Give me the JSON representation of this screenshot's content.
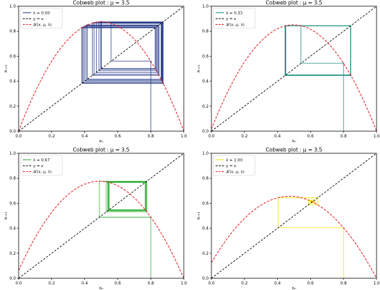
{
  "chart_data": [
    {
      "type": "line",
      "title": "Cobweb plot : μ = 3.5",
      "xlabel": "xₙ",
      "ylabel": "xₙ₊₁",
      "xlim": [
        0,
        1.0
      ],
      "ylim": [
        0,
        1.0
      ],
      "xticks": [
        "0.0",
        "0.2",
        "0.4",
        "0.6",
        "0.8",
        "1.0"
      ],
      "yticks": [
        "0.0",
        "0.2",
        "0.4",
        "0.6",
        "0.8",
        "1.0"
      ],
      "legend_position": "top-left",
      "grid": false,
      "series": [
        {
          "name": "λ = 0.00",
          "kind": "cobweb",
          "lambda": 0.0,
          "x0": 0.8,
          "iterations": 60,
          "color": "#2b3f8c"
        },
        {
          "name": "y = x",
          "kind": "identity",
          "color": "#000000"
        },
        {
          "name": "𝒦(x, μ, λ)",
          "kind": "map",
          "lambda": 0.0,
          "mu": 3.5,
          "color": "#e8242b"
        }
      ]
    },
    {
      "type": "line",
      "title": "Cobweb plot : μ = 3.5",
      "xlabel": "xₙ",
      "ylabel": "xₙ₊₁",
      "xlim": [
        0,
        1.0
      ],
      "ylim": [
        0,
        1.0
      ],
      "xticks": [
        "0.0",
        "0.2",
        "0.4",
        "0.6",
        "0.8",
        "1.0"
      ],
      "yticks": [
        "0.0",
        "0.2",
        "0.4",
        "0.6",
        "0.8",
        "1.0"
      ],
      "legend_position": "top-left",
      "grid": false,
      "series": [
        {
          "name": "λ = 0.33",
          "kind": "cobweb",
          "lambda": 0.33,
          "x0": 0.8,
          "iterations": 60,
          "color": "#1a8f80"
        },
        {
          "name": "y = x",
          "kind": "identity",
          "color": "#000000"
        },
        {
          "name": "𝒦(x, μ, λ)",
          "kind": "map",
          "lambda": 0.33,
          "mu": 3.5,
          "color": "#e8242b"
        }
      ]
    },
    {
      "type": "line",
      "title": "Cobweb plot : μ = 3.5",
      "xlabel": "xₙ",
      "ylabel": "xₙ₊₁",
      "xlim": [
        0,
        1.0
      ],
      "ylim": [
        0,
        1.0
      ],
      "xticks": [
        "0.0",
        "0.2",
        "0.4",
        "0.6",
        "0.8",
        "1.0"
      ],
      "yticks": [
        "0.0",
        "0.2",
        "0.4",
        "0.6",
        "0.8",
        "1.0"
      ],
      "legend_position": "top-left",
      "grid": false,
      "series": [
        {
          "name": "λ = 0.67",
          "kind": "cobweb",
          "lambda": 0.67,
          "x0": 0.8,
          "iterations": 60,
          "color": "#34b03a"
        },
        {
          "name": "y = x",
          "kind": "identity",
          "color": "#000000"
        },
        {
          "name": "𝒦(x, μ, λ)",
          "kind": "map",
          "lambda": 0.67,
          "mu": 3.5,
          "color": "#e8242b"
        }
      ]
    },
    {
      "type": "line",
      "title": "Cobweb plot : μ = 3.5",
      "xlabel": "xₙ",
      "ylabel": "xₙ₊₁",
      "xlim": [
        0,
        1.0
      ],
      "ylim": [
        0,
        1.0
      ],
      "xticks": [
        "0.0",
        "0.2",
        "0.4",
        "0.6",
        "0.8",
        "1.0"
      ],
      "yticks": [
        "0.0",
        "0.2",
        "0.4",
        "0.6",
        "0.8",
        "1.0"
      ],
      "legend_position": "top-left",
      "grid": false,
      "series": [
        {
          "name": "λ = 1.00",
          "kind": "cobweb",
          "lambda": 1.0,
          "x0": 0.8,
          "iterations": 60,
          "color": "#f2e600"
        },
        {
          "name": "y = x",
          "kind": "identity",
          "color": "#000000"
        },
        {
          "name": "𝒦(x, μ, λ)",
          "kind": "map",
          "lambda": 1.0,
          "mu": 3.5,
          "color": "#e8242b"
        }
      ]
    }
  ]
}
